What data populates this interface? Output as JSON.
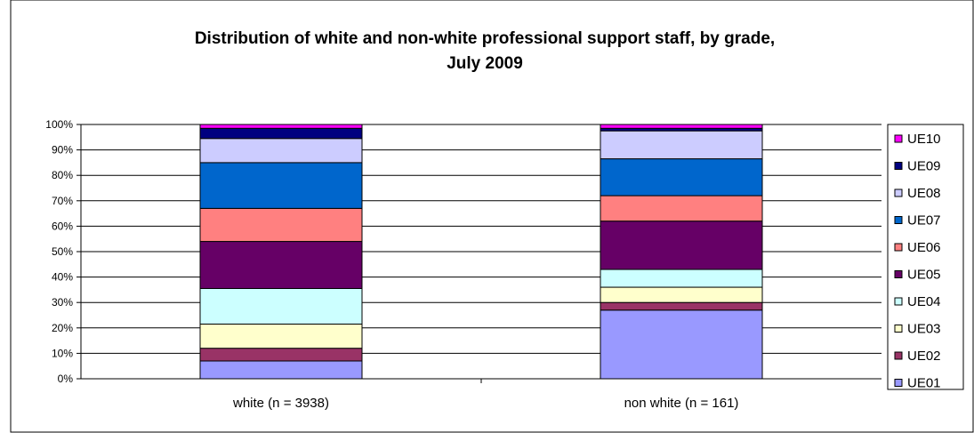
{
  "chart_data": {
    "type": "bar",
    "stacked": true,
    "percent": true,
    "title": "Distribution of white and non-white professional support staff, by grade, July 2009",
    "title_lines": [
      "Distribution of white and non-white professional support staff, by grade,",
      "July 2009"
    ],
    "categories": [
      "white (n = 3938)",
      "non white (n = 161)"
    ],
    "ylim": [
      0,
      100
    ],
    "yticks": [
      "0%",
      "10%",
      "20%",
      "30%",
      "40%",
      "50%",
      "60%",
      "70%",
      "80%",
      "90%",
      "100%"
    ],
    "grid": true,
    "legend_position": "right",
    "series": [
      {
        "name": "UE01",
        "color": "#9999FF",
        "values": [
          7,
          27
        ]
      },
      {
        "name": "UE02",
        "color": "#993366",
        "values": [
          5,
          3
        ]
      },
      {
        "name": "UE03",
        "color": "#FFFFCC",
        "values": [
          9.5,
          6
        ]
      },
      {
        "name": "UE04",
        "color": "#CCFFFF",
        "values": [
          14,
          7
        ]
      },
      {
        "name": "UE05",
        "color": "#660066",
        "values": [
          18.5,
          19
        ]
      },
      {
        "name": "UE06",
        "color": "#FF8080",
        "values": [
          13,
          10
        ]
      },
      {
        "name": "UE07",
        "color": "#0066CC",
        "values": [
          18,
          14.5
        ]
      },
      {
        "name": "UE08",
        "color": "#CCCCFF",
        "values": [
          9.5,
          11
        ]
      },
      {
        "name": "UE09",
        "color": "#000080",
        "values": [
          4,
          1
        ]
      },
      {
        "name": "UE10",
        "color": "#FF00FF",
        "values": [
          1.5,
          1.5
        ]
      }
    ]
  }
}
